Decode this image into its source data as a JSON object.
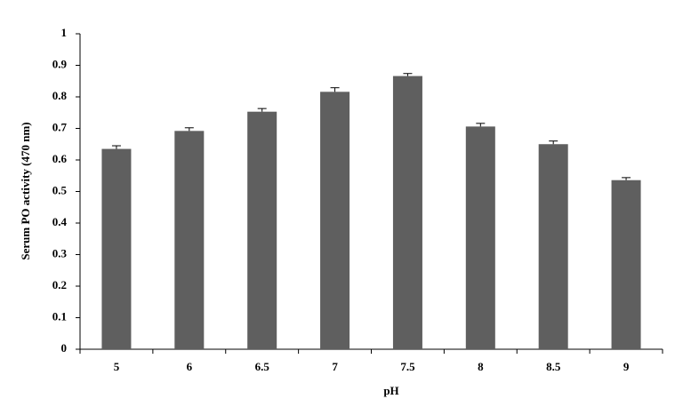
{
  "chart_data": {
    "type": "bar",
    "x_label": "pH",
    "y_label": "Serum PO activity (470 nm)",
    "categories": [
      "5",
      "6",
      "6.5",
      "7",
      "7.5",
      "8",
      "8.5",
      "9"
    ],
    "values": [
      0.635,
      0.692,
      0.753,
      0.816,
      0.866,
      0.706,
      0.65,
      0.536
    ],
    "errors": [
      0.01,
      0.01,
      0.01,
      0.013,
      0.008,
      0.01,
      0.01,
      0.008
    ],
    "color": "#5f5f5f",
    "ylim": [
      0,
      1
    ],
    "yticks": [
      0,
      0.1,
      0.2,
      0.3,
      0.4,
      0.5,
      0.6,
      0.7,
      0.8,
      0.9,
      1
    ],
    "grid": false
  }
}
